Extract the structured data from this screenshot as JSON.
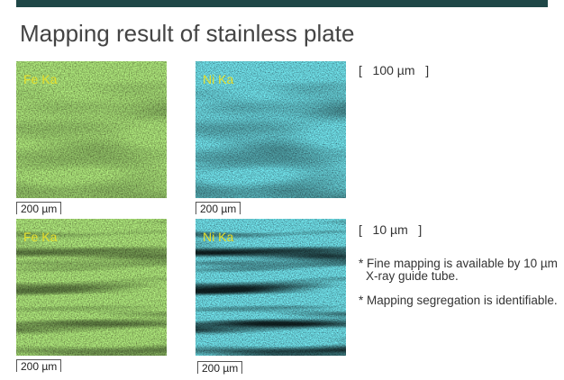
{
  "header": {
    "title": "Mapping result of stainless plate"
  },
  "rows": [
    {
      "resolution": "[   100 µm   ]",
      "images": [
        {
          "label": "Fe Ka",
          "scale": "200 µm"
        },
        {
          "label": "Ni Ka",
          "scale": "200 µm"
        }
      ]
    },
    {
      "resolution": "[   10 µm   ]",
      "images": [
        {
          "label": "Fe Ka",
          "scale": "200 µm"
        },
        {
          "label": "Ni Ka",
          "scale": "200 µm"
        }
      ]
    }
  ],
  "notes": [
    "* Fine mapping is available by 10 µm X-ray guide tube.",
    "* Mapping segregation is identifiable."
  ]
}
